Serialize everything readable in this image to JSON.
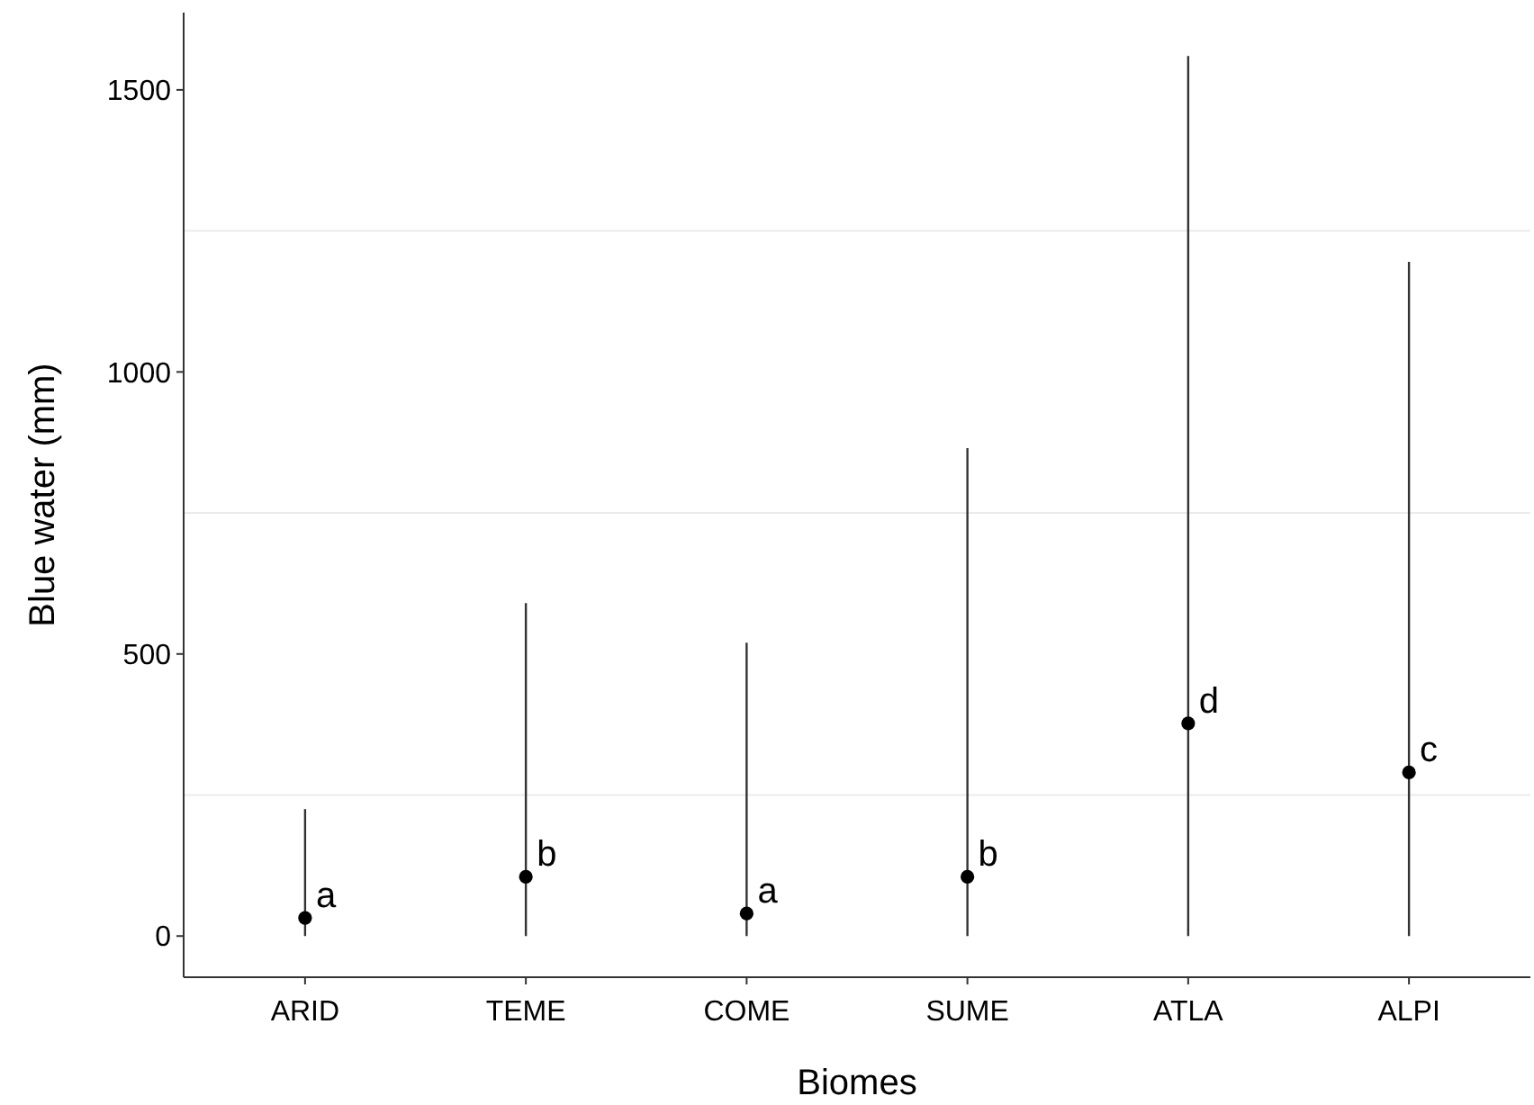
{
  "chart_data": {
    "type": "scatter",
    "xlabel": "Biomes",
    "ylabel": "Blue water (mm)",
    "categories": [
      "ARID",
      "TEME",
      "COME",
      "SUME",
      "ATLA",
      "ALPI"
    ],
    "ylim": [
      -73,
      1637
    ],
    "yticks": [
      0,
      {
        "value": 250,
        "label": null
      },
      500,
      {
        "value": 750,
        "label": null
      },
      1000,
      {
        "value": 1250,
        "label": null
      },
      1500
    ],
    "grid": "y",
    "series": [
      {
        "color": "#000000",
        "values": [
          32,
          105,
          40,
          105,
          377,
          290
        ],
        "errors": [
          [
            0,
            225
          ],
          [
            0,
            590
          ],
          [
            0,
            520
          ],
          [
            0,
            865
          ],
          [
            0,
            1560
          ],
          [
            0,
            1195
          ]
        ]
      }
    ],
    "annotations": [
      "a",
      "b",
      "a",
      "b",
      "d",
      "c"
    ]
  }
}
